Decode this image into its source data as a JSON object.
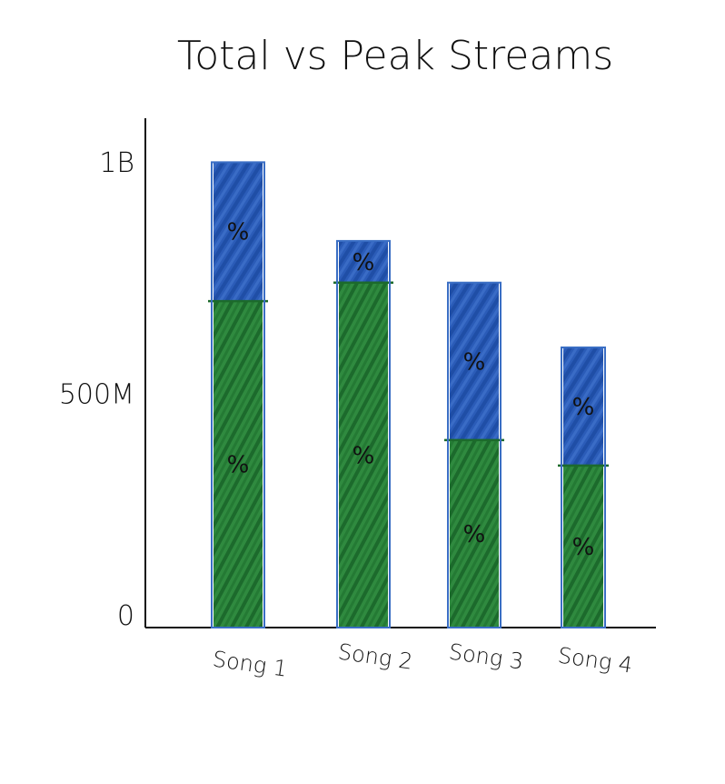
{
  "chart_data": {
    "type": "bar",
    "stacked": true,
    "title": "Total vs Peak Streams",
    "xlabel": "",
    "ylabel": "",
    "categories": [
      "Song 1",
      "Song 2",
      "Song 3",
      "Song 4"
    ],
    "y_tick_labels": [
      "0",
      "500M",
      "1B"
    ],
    "y_tick_values": [
      0,
      500,
      1000
    ],
    "ylim": [
      0,
      1100
    ],
    "series": [
      {
        "values": [
          705,
          745,
          405,
          350
        ],
        "color": "#237a35",
        "segment_label": "%"
      },
      {
        "values": [
          300,
          90,
          340,
          255
        ],
        "color": "#2f5fb3",
        "segment_label": "%"
      }
    ],
    "bar_outline_color": "#3a6ec4",
    "grid": false,
    "legend": "none"
  }
}
